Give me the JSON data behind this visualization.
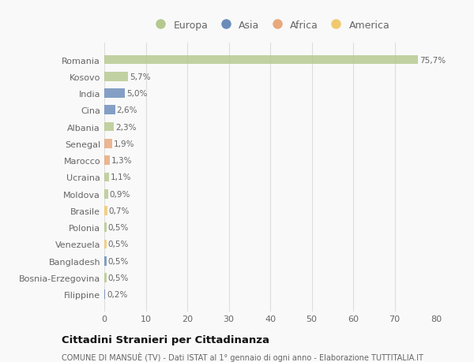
{
  "countries": [
    "Romania",
    "Kosovo",
    "India",
    "Cina",
    "Albania",
    "Senegal",
    "Marocco",
    "Ucraina",
    "Moldova",
    "Brasile",
    "Polonia",
    "Venezuela",
    "Bangladesh",
    "Bosnia-Erzegovina",
    "Filippine"
  ],
  "values": [
    75.7,
    5.7,
    5.0,
    2.6,
    2.3,
    1.9,
    1.3,
    1.1,
    0.9,
    0.7,
    0.5,
    0.5,
    0.5,
    0.5,
    0.2
  ],
  "labels": [
    "75,7%",
    "5,7%",
    "5,0%",
    "2,6%",
    "2,3%",
    "1,9%",
    "1,3%",
    "1,1%",
    "0,9%",
    "0,7%",
    "0,5%",
    "0,5%",
    "0,5%",
    "0,5%",
    "0,2%"
  ],
  "colors": [
    "#b5c98e",
    "#b5c98e",
    "#6b8cba",
    "#6b8cba",
    "#b5c98e",
    "#e8a87c",
    "#e8a87c",
    "#b5c98e",
    "#b5c98e",
    "#f0c96e",
    "#b5c98e",
    "#f0c96e",
    "#6b8cba",
    "#b5c98e",
    "#6b8cba"
  ],
  "legend_labels": [
    "Europa",
    "Asia",
    "Africa",
    "America"
  ],
  "legend_colors": [
    "#b5c98e",
    "#6b8cba",
    "#e8a87c",
    "#f0c96e"
  ],
  "title": "Cittadini Stranieri per Cittadinanza",
  "subtitle": "COMUNE DI MANSUÈ (TV) - Dati ISTAT al 1° gennaio di ogni anno - Elaborazione TUTTITALIA.IT",
  "xlim": [
    0,
    80
  ],
  "xticks": [
    0,
    10,
    20,
    30,
    40,
    50,
    60,
    70,
    80
  ],
  "background_color": "#f9f9f9",
  "grid_color": "#dddddd",
  "bar_height": 0.55,
  "text_color": "#666666",
  "title_color": "#111111",
  "subtitle_color": "#666666"
}
